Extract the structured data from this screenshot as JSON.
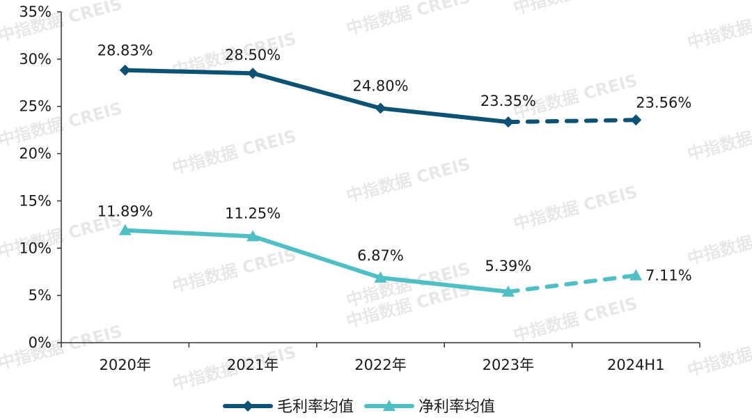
{
  "watermark": "中指数据 CREIS",
  "chart_data": {
    "type": "line",
    "title": "",
    "xlabel": "",
    "ylabel": "",
    "categories": [
      "2020年",
      "2021年",
      "2022年",
      "2023年",
      "2024H1"
    ],
    "ylim": [
      0,
      35
    ],
    "yticks": [
      0,
      5,
      10,
      15,
      20,
      25,
      30,
      35
    ],
    "ytick_labels": [
      "0%",
      "5%",
      "10%",
      "15%",
      "20%",
      "25%",
      "30%",
      "35%"
    ],
    "grid": false,
    "legend_position": "bottom",
    "series": [
      {
        "name": "毛利率均值",
        "values": [
          28.83,
          28.5,
          24.8,
          23.35,
          23.56
        ],
        "labels": [
          "28.83%",
          "28.50%",
          "24.80%",
          "23.35%",
          "23.56%"
        ],
        "color": "#0b5275",
        "marker": "diamond",
        "dashed_from_index": 3
      },
      {
        "name": "净利率均值",
        "values": [
          11.89,
          11.25,
          6.87,
          5.39,
          7.11
        ],
        "labels": [
          "11.89%",
          "11.25%",
          "6.87%",
          "5.39%",
          "7.11%"
        ],
        "color": "#4fbfc6",
        "marker": "triangle",
        "dashed_from_index": 3
      }
    ]
  }
}
